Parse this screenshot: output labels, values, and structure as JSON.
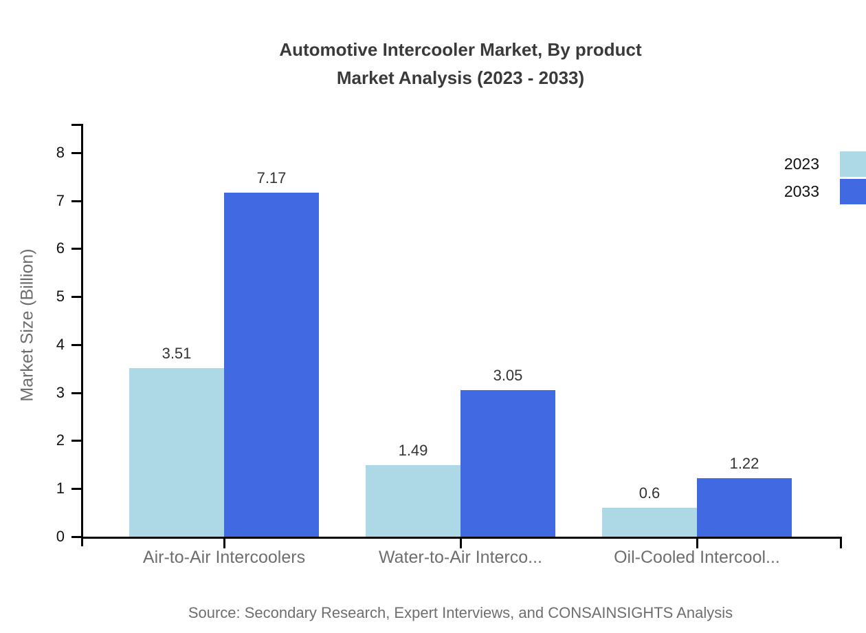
{
  "page": {
    "title_line1": "Automotive Intercooler Market, By product",
    "title_line2": "Market Analysis (2023 - 2033)",
    "source": "Source: Secondary Research, Expert Interviews, and CONSAINSIGHTS Analysis"
  },
  "chart_data": {
    "type": "bar",
    "title": "Automotive Intercooler Market, By product Market Analysis (2023 - 2033)",
    "categories": [
      "Air-to-Air Intercoolers",
      "Water-to-Air Interco...",
      "Oil-Cooled Intercool..."
    ],
    "series": [
      {
        "name": "2023",
        "color": "#ADD8E6",
        "values": [
          3.51,
          1.49,
          0.6
        ]
      },
      {
        "name": "2033",
        "color": "#4169E1",
        "values": [
          7.17,
          3.05,
          1.22
        ]
      }
    ],
    "xlabel": "",
    "ylabel": "Market Size (Billion)",
    "ylim": [
      0,
      8.6
    ],
    "yticks": [
      0,
      1,
      2,
      3,
      4,
      5,
      6,
      7,
      8
    ],
    "grid": false,
    "legend_position": "top-right",
    "axis_color": "#000000",
    "label_color": "#333333",
    "muted_text_color": "#6e6e6e"
  }
}
